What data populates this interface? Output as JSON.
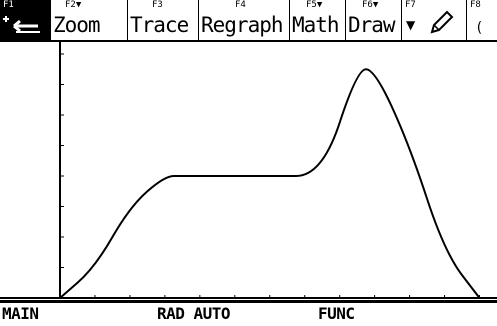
{
  "toolbar": {
    "items": [
      {
        "fkey": "F1",
        "label": ""
      },
      {
        "fkey": "F2▼",
        "label": "Zoom"
      },
      {
        "fkey": "F3",
        "label": "Trace"
      },
      {
        "fkey": "F4",
        "label": "Regraph"
      },
      {
        "fkey": "F5▼",
        "label": "Math"
      },
      {
        "fkey": "F6▼",
        "label": "Draw"
      },
      {
        "fkey": "F7",
        "label": ""
      },
      {
        "fkey": "F8",
        "label": ""
      }
    ]
  },
  "status": {
    "folder": "MAIN",
    "mode": "RAD AUTO",
    "graph_mode": "FUNC"
  },
  "chart_data": {
    "type": "line",
    "x": [
      0,
      2,
      4,
      6,
      7,
      10,
      12,
      15,
      17,
      18,
      20,
      22,
      24
    ],
    "y": [
      0,
      2,
      6,
      8,
      8,
      8,
      8,
      8,
      15,
      15,
      10,
      3,
      0
    ],
    "xlim": [
      0,
      25
    ],
    "ylim": [
      0,
      16
    ],
    "grid": false,
    "colors": {
      "line": "#000000",
      "axis": "#000000"
    }
  }
}
